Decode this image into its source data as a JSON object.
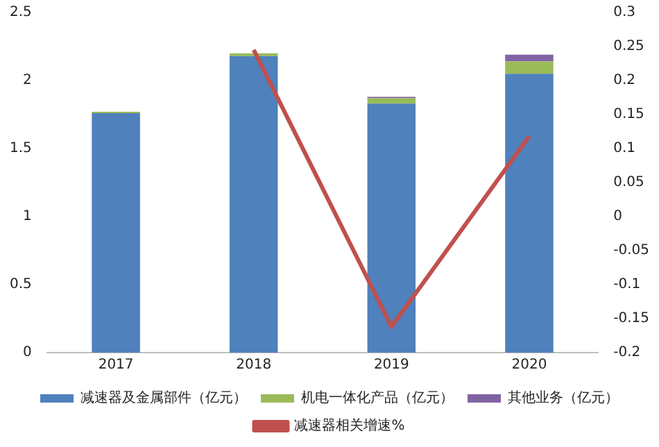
{
  "chart_data": {
    "type": "bar",
    "stacked": true,
    "categories": [
      "2017",
      "2018",
      "2019",
      "2020"
    ],
    "series": [
      {
        "name": "减速器及金属部件（亿元）",
        "color": "#4f81bd",
        "values": [
          1.76,
          2.18,
          1.83,
          2.05
        ]
      },
      {
        "name": "机电一体化产品（亿元）",
        "color": "#9bbb59",
        "values": [
          0.01,
          0.02,
          0.04,
          0.09
        ]
      },
      {
        "name": "其他业务（亿元）",
        "color": "#8064a2",
        "values": [
          0,
          0,
          0.01,
          0.05
        ]
      },
      {
        "name": "减速器相关增速%",
        "type": "line",
        "axis": "y2",
        "color": "#c0504d",
        "values": [
          null,
          0.245,
          -0.162,
          0.118
        ]
      }
    ],
    "ylim": [
      0,
      2.5
    ],
    "yticks": [
      0,
      0.5,
      1,
      1.5,
      2,
      2.5
    ],
    "y2lim": [
      -0.2,
      0.3
    ],
    "y2ticks": [
      -0.2,
      -0.15,
      -0.1,
      -0.05,
      0,
      0.05,
      0.1,
      0.15,
      0.2,
      0.25,
      0.3
    ],
    "grid": false,
    "legend": "bottom",
    "marker": "none"
  }
}
